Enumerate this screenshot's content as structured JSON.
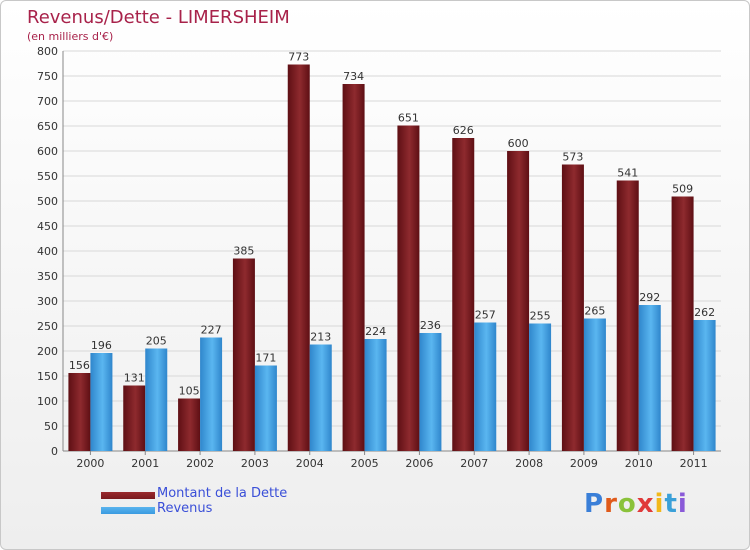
{
  "title": "Revenus/Dette - LIMERSHEIM",
  "subtitle": "(en milliers d'€)",
  "brand": {
    "letters": [
      "P",
      "r",
      "o",
      "x",
      "i",
      "t",
      "i"
    ],
    "colors": [
      "#3a7fd8",
      "#e05a1a",
      "#8ac23a",
      "#e03a3a",
      "#f2b81a",
      "#3aa0d8",
      "#8a5ad8"
    ]
  },
  "colors": {
    "dette": "#7a1a1e",
    "revenus": "#3a9ae0",
    "grid": "#d8d8d8",
    "title": "#a8224a"
  },
  "chart_data": {
    "type": "bar",
    "categories": [
      "2000",
      "2001",
      "2002",
      "2003",
      "2004",
      "2005",
      "2006",
      "2007",
      "2008",
      "2009",
      "2010",
      "2011"
    ],
    "series": [
      {
        "name": "Montant de la Dette",
        "values": [
          156,
          131,
          105,
          385,
          773,
          734,
          651,
          626,
          600,
          573,
          541,
          509
        ]
      },
      {
        "name": "Revenus",
        "values": [
          196,
          205,
          227,
          171,
          213,
          224,
          236,
          257,
          255,
          265,
          292,
          262
        ]
      }
    ],
    "yticks": [
      0,
      50,
      100,
      150,
      200,
      250,
      300,
      350,
      400,
      450,
      500,
      550,
      600,
      650,
      700,
      750,
      800
    ],
    "ylim": [
      0,
      800
    ],
    "grid": true,
    "legend_position": "bottom-left"
  }
}
